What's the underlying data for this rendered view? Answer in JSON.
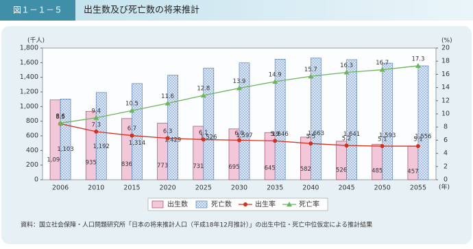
{
  "header": {
    "figure_no": "図１－１－５",
    "title": "出生数及び死亡数の将来推計"
  },
  "chart_data": {
    "type": "bar",
    "y_unit": "(千人)",
    "y2_unit": "(%)",
    "x_unit": "(年)",
    "categories": [
      "2006",
      "2010",
      "2015",
      "2020",
      "2025",
      "2030",
      "2035",
      "2040",
      "2045",
      "2050",
      "2055"
    ],
    "series": [
      {
        "name": "出生数",
        "color": "#f3c7da",
        "values": [
          1090,
          935,
          836,
          773,
          731,
          695,
          645,
          582,
          526,
          485,
          457
        ],
        "value_labels": [
          "1,090",
          "935",
          "836",
          "773",
          "731",
          "695",
          "645",
          "582",
          "526",
          "485",
          "457"
        ]
      },
      {
        "name": "死亡数",
        "color": "#c9dcf2",
        "values": [
          1103,
          1192,
          1314,
          1429,
          1526,
          1597,
          1646,
          1663,
          1641,
          1593,
          1556
        ],
        "value_labels": [
          "1,103",
          "1,192",
          "1,314",
          "1,429",
          "1,526",
          "1,597",
          "1,646",
          "1,663",
          "1,641",
          "1,593",
          "1,556"
        ]
      },
      {
        "name": "出生率",
        "type": "line",
        "axis": "y2",
        "color": "#d4301c",
        "values": [
          8.5,
          7.3,
          6.7,
          6.3,
          6.1,
          6.0,
          5.9,
          5.5,
          5.2,
          5.1,
          5.1
        ],
        "value_labels": [
          "8.5",
          "7.3",
          "6.7",
          "6.3",
          "6.1",
          "6.0",
          "5.9",
          "5.5",
          "5.2",
          "5.1",
          "5.1"
        ]
      },
      {
        "name": "死亡率",
        "type": "line",
        "axis": "y2",
        "color": "#6cb45a",
        "values": [
          8.6,
          9.4,
          10.5,
          11.6,
          12.8,
          13.9,
          14.9,
          15.7,
          16.3,
          16.7,
          17.3
        ],
        "value_labels": [
          "8.6",
          "9.4",
          "10.5",
          "11.6",
          "12.8",
          "13.9",
          "14.9",
          "15.7",
          "16.3",
          "16.7",
          "17.3"
        ]
      }
    ],
    "ylim": [
      0,
      1800
    ],
    "yticks": [
      0,
      200,
      400,
      600,
      800,
      {
        "value": 1000,
        "label": "1,000"
      },
      {
        "value": 1200,
        "label": "1,200"
      },
      {
        "value": 1400,
        "label": "1,400"
      },
      {
        "value": 1600,
        "label": "1,600"
      },
      {
        "value": 1800,
        "label": "1,800"
      }
    ],
    "y2lim": [
      0,
      20
    ],
    "y2ticks": [
      0,
      2,
      4,
      6,
      8,
      10,
      12,
      14,
      16,
      18,
      20
    ],
    "legend": "bottom"
  },
  "source": "資料：国立社会保障・人口問題研究所「日本の将来推計人口（平成18年12月推計）」の出生中位・死亡中位仮定による推計結果"
}
